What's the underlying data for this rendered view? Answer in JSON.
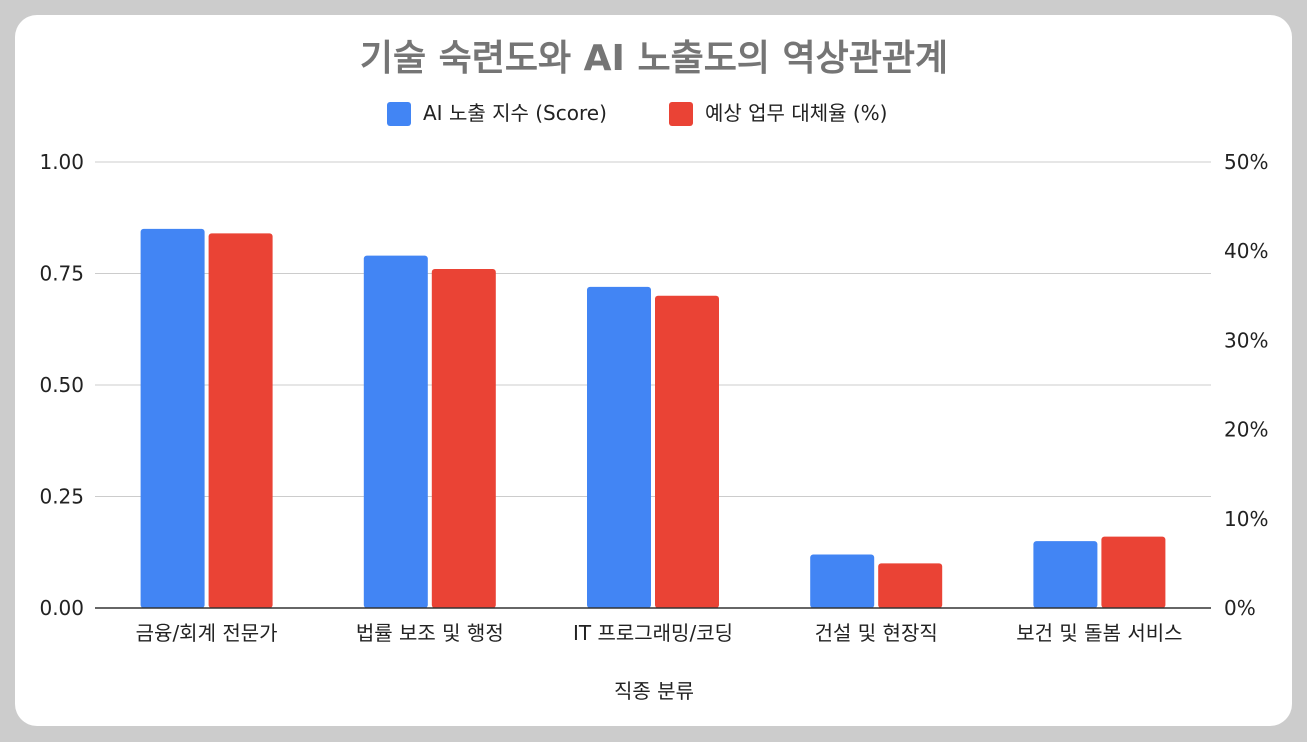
{
  "chart_data": {
    "type": "bar",
    "title": "기술 숙련도와 AI 노출도의 역상관관계",
    "xlabel": "직종 분류",
    "ylabel": "",
    "ylabel_right": "",
    "categories": [
      "금융/회계 전문가",
      "법률 보조 및 행정",
      "IT 프로그래밍/코딩",
      "건설 및 현장직",
      "보건 및 돌봄 서비스"
    ],
    "series": [
      {
        "name": "AI 노출 지수 (Score)",
        "axis": "left",
        "color": "#4285f4",
        "values": [
          0.85,
          0.79,
          0.72,
          0.12,
          0.15
        ]
      },
      {
        "name": "예상 업무 대체율 (%)",
        "axis": "right",
        "color": "#ea4335",
        "values": [
          42,
          38,
          35,
          5,
          8
        ]
      }
    ],
    "ylim": [
      0,
      1
    ],
    "ylim_right": [
      0,
      50
    ],
    "yticks": [
      "1.00",
      "0.75",
      "0.50",
      "0.25",
      "0.00"
    ],
    "yticks_right": [
      "50%",
      "40%",
      "30%",
      "20%",
      "10%",
      "0%"
    ],
    "legend": "top",
    "grid": true
  }
}
